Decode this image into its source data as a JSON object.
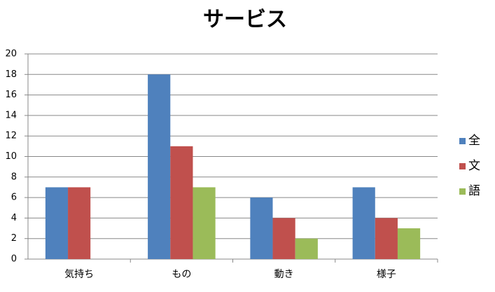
{
  "chart_data": {
    "type": "bar",
    "title": "サービス",
    "categories": [
      "気持ち",
      "もの",
      "動き",
      "様子"
    ],
    "series": [
      {
        "name": "全",
        "color": "#4f81bd",
        "values": [
          7,
          18,
          6,
          7
        ]
      },
      {
        "name": "文",
        "color": "#c0504d",
        "values": [
          7,
          11,
          4,
          4
        ]
      },
      {
        "name": "語",
        "color": "#9bbb59",
        "values": [
          0,
          7,
          2,
          3
        ]
      }
    ],
    "ylim": [
      0,
      20
    ],
    "yticks": [
      0,
      2,
      4,
      6,
      8,
      10,
      12,
      14,
      16,
      18,
      20
    ],
    "grid": true,
    "legend": "right"
  }
}
